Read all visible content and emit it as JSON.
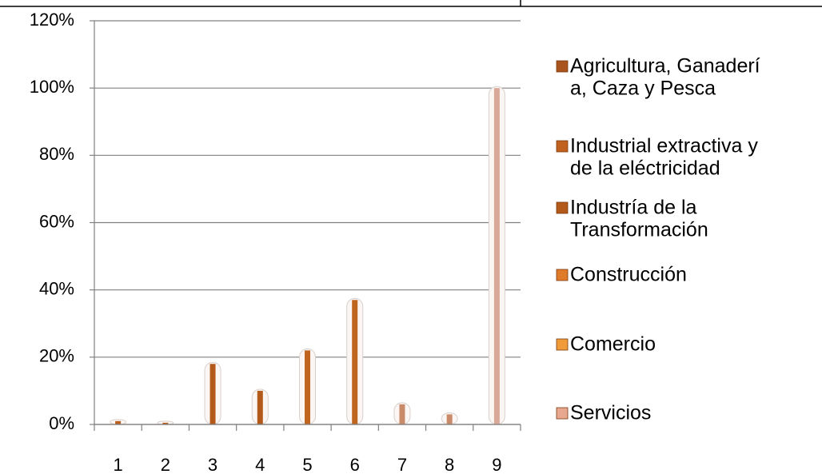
{
  "chart_data": {
    "type": "bar",
    "categories": [
      "1",
      "2",
      "3",
      "4",
      "5",
      "6",
      "7",
      "8",
      "9"
    ],
    "values": [
      1,
      0.5,
      18,
      10,
      22,
      37,
      6,
      3,
      100
    ],
    "colors": [
      "#b8601e",
      "#b8601e",
      "#b35a1a",
      "#b35a1a",
      "#c0651f",
      "#c0651f",
      "#c98a6a",
      "#c98a6a",
      "#d9a898"
    ],
    "ylim": [
      0,
      120
    ],
    "yticks": [
      {
        "value": 0,
        "label": "0%"
      },
      {
        "value": 20,
        "label": "20%"
      },
      {
        "value": 40,
        "label": "40%"
      },
      {
        "value": 60,
        "label": "60%"
      },
      {
        "value": 80,
        "label": "80%"
      },
      {
        "value": 100,
        "label": "100%"
      },
      {
        "value": 120,
        "label": "120%"
      }
    ],
    "grid": true,
    "legend": [
      {
        "lines": [
          "Agricultura, Ganaderí",
          "a, Caza y Pesca"
        ],
        "color": "#a8541c"
      },
      {
        "lines": [
          "Industrial extractiva y",
          "de la eléctricidad"
        ],
        "color": "#c0621e"
      },
      {
        "lines": [
          "Industría de la",
          "Transformación"
        ],
        "color": "#b35a1a"
      },
      {
        "lines": [
          "Construcción"
        ],
        "color": "#e07b2a"
      },
      {
        "lines": [
          "Comercio"
        ],
        "color": "#f09a3a"
      },
      {
        "lines": [
          "Servicios"
        ],
        "color": "#e8a890"
      }
    ]
  }
}
